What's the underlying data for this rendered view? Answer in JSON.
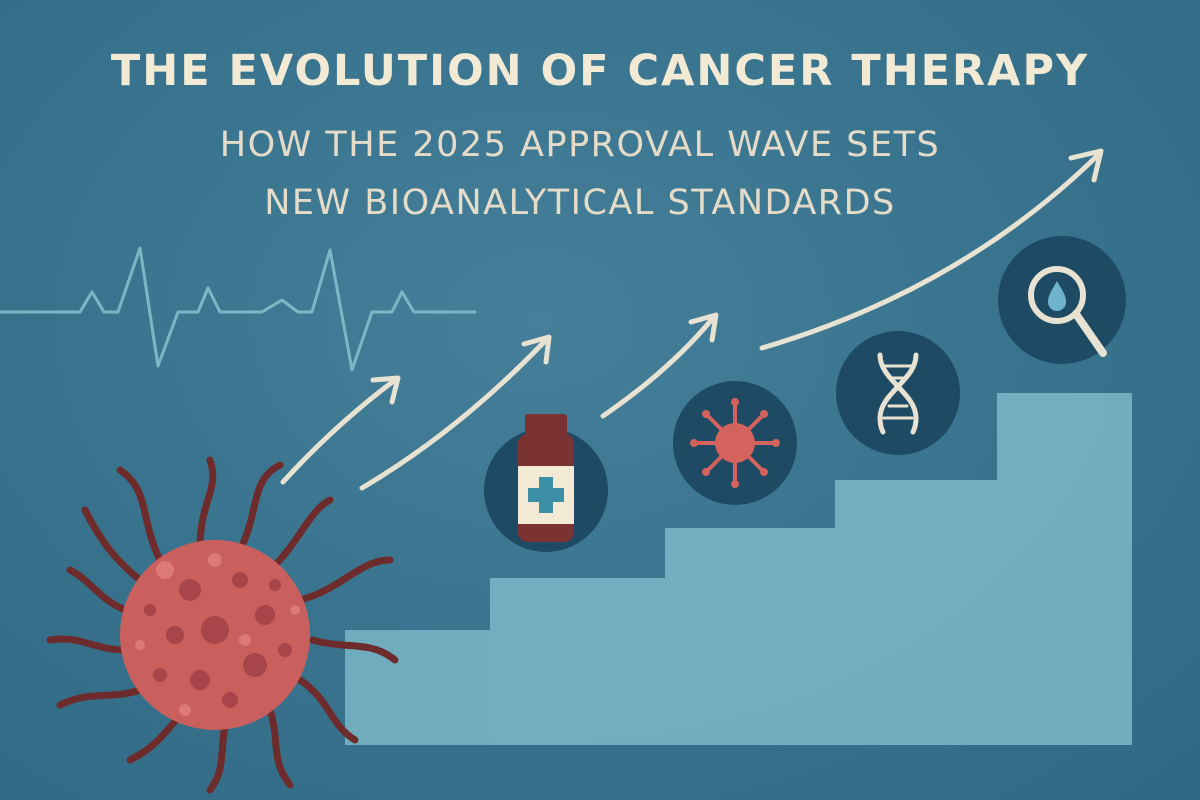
{
  "header": {
    "title": "THE EVOLUTION OF CANCER THERAPY",
    "subtitle_line1": "HOW THE 2025 APPROVAL WAVE SETS",
    "subtitle_line2": "NEW BIOANALYTICAL STANDARDS"
  },
  "icons": {
    "cell": "cancer-cell-icon",
    "heartbeat": "heartbeat-line-icon",
    "bottle": "medicine-bottle-icon",
    "immune": "immune-cell-icon",
    "dna": "dna-helix-icon",
    "magnifier": "magnifier-droplet-icon"
  },
  "colors": {
    "background": "#3a7590",
    "bars": "#74b1c2",
    "cell": "#c9605e",
    "cream": "#f3ead6",
    "icon_circle": "#1e4a63"
  }
}
